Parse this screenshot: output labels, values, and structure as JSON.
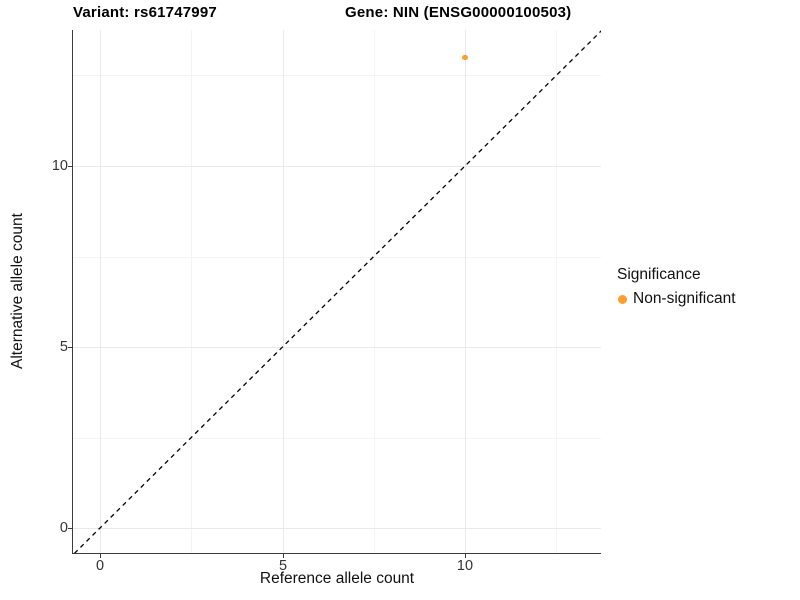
{
  "titles": {
    "variant": "Variant: rs61747997",
    "gene": "Gene: NIN (ENSG00000100503)"
  },
  "chart_data": {
    "type": "scatter",
    "title_left": "Variant: rs61747997",
    "title_right": "Gene: NIN (ENSG00000100503)",
    "xlabel": "Reference allele count",
    "ylabel": "Alternative allele count",
    "x_ticks": [
      0,
      5,
      10
    ],
    "y_ticks": [
      0,
      5,
      10
    ],
    "x_minor_ticks": [
      2.5,
      7.5,
      12.5
    ],
    "y_minor_ticks": [
      2.5,
      7.5,
      12.5
    ],
    "xlim": [
      -0.7,
      13.75
    ],
    "ylim": [
      -0.7,
      13.8
    ],
    "grid": true,
    "legend_position": "right",
    "series": [
      {
        "name": "Non-significant",
        "color": "#FF9D2E",
        "points": [
          {
            "x": 10,
            "y": 13
          }
        ]
      }
    ],
    "reference_line": {
      "equation": "y = x",
      "style": "dashed",
      "color": "#000000"
    }
  },
  "legend": {
    "title": "Significance",
    "items": [
      {
        "label": "Non-significant",
        "color": "#FF9D2E"
      }
    ]
  }
}
